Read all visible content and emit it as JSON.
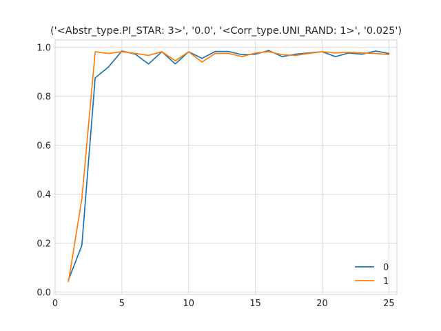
{
  "chart_data": {
    "type": "line",
    "title": "('<Abstr_type.PI_STAR: 3>', '0.0', '<Corr_type.UNI_RAND: 1>', '0.025')",
    "xlabel": "",
    "ylabel": "",
    "xlim": [
      0,
      25.6
    ],
    "ylim": [
      -0.01,
      1.03
    ],
    "xticks": [
      0,
      5,
      10,
      15,
      20,
      25
    ],
    "yticks": [
      0.0,
      0.2,
      0.4,
      0.6,
      0.8,
      1.0
    ],
    "xtick_labels": [
      "0",
      "5",
      "10",
      "15",
      "20",
      "25"
    ],
    "ytick_labels": [
      "0.0",
      "0.2",
      "0.4",
      "0.6",
      "0.8",
      "1.0"
    ],
    "grid": true,
    "legend_position": "lower-right",
    "x": [
      1,
      2,
      3,
      4,
      5,
      6,
      7,
      8,
      9,
      10,
      11,
      12,
      13,
      14,
      15,
      16,
      17,
      18,
      19,
      20,
      21,
      22,
      23,
      24,
      25
    ],
    "series": [
      {
        "name": "0",
        "color": "#1f77b4",
        "values": [
          0.05,
          0.19,
          0.875,
          0.92,
          0.985,
          0.972,
          0.932,
          0.982,
          0.932,
          0.982,
          0.955,
          0.983,
          0.983,
          0.97,
          0.972,
          0.987,
          0.962,
          0.972,
          0.977,
          0.982,
          0.962,
          0.977,
          0.972,
          0.985,
          0.975
        ]
      },
      {
        "name": "1",
        "color": "#ff7f0e",
        "values": [
          0.043,
          0.38,
          0.982,
          0.975,
          0.982,
          0.975,
          0.967,
          0.982,
          0.945,
          0.982,
          0.94,
          0.975,
          0.975,
          0.962,
          0.977,
          0.982,
          0.97,
          0.967,
          0.975,
          0.982,
          0.977,
          0.98,
          0.977,
          0.975,
          0.97
        ]
      }
    ]
  }
}
